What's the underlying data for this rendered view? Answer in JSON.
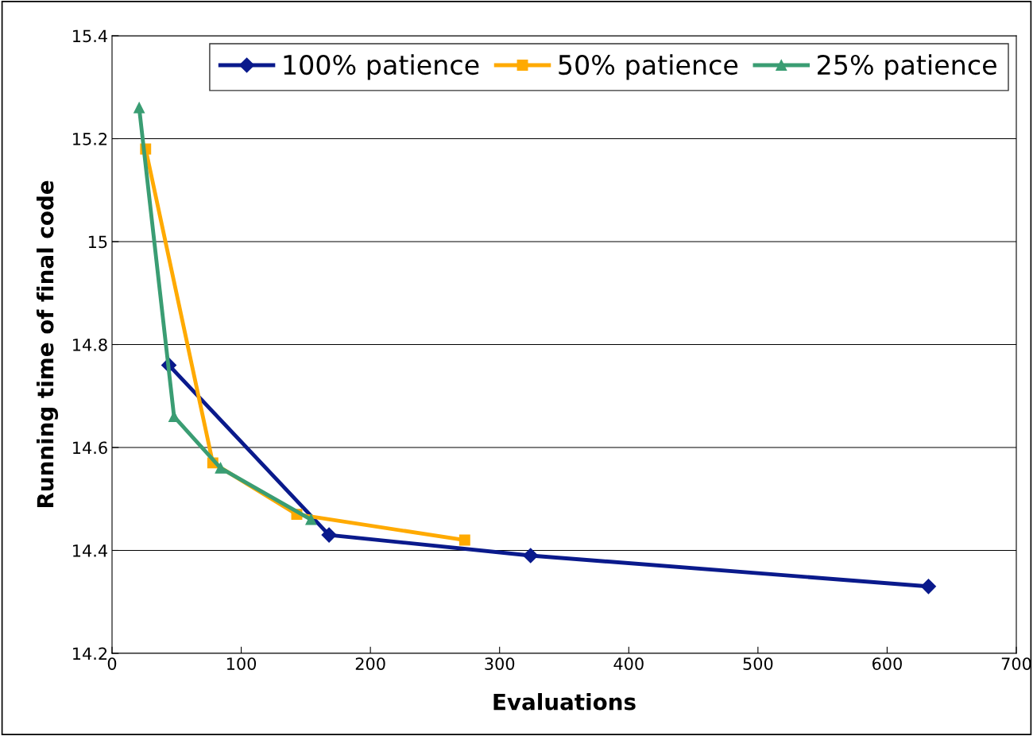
{
  "chart_data": {
    "type": "line",
    "xlabel": "Evaluations",
    "ylabel": "Running time of final code",
    "xlim": [
      0,
      700
    ],
    "xticks": [
      0,
      100,
      200,
      300,
      400,
      500,
      600,
      700
    ],
    "ylim": [
      14.2,
      15.4
    ],
    "yticks": [
      14.2,
      14.4,
      14.6,
      14.8,
      15,
      15.2,
      15.4
    ],
    "grid": "y",
    "legend": "top right",
    "series": [
      {
        "name": "100% patience",
        "color": "#0a1a8c",
        "marker": "diamond",
        "x": [
          44,
          168,
          324,
          632
        ],
        "values": [
          14.76,
          14.43,
          14.39,
          14.33
        ]
      },
      {
        "name": "50% patience",
        "color": "#ffaa00",
        "marker": "square",
        "x": [
          26,
          78,
          143,
          273
        ],
        "values": [
          15.18,
          14.57,
          14.47,
          14.42
        ]
      },
      {
        "name": "25% patience",
        "color": "#3a9d73",
        "marker": "triangle",
        "x": [
          21,
          48,
          84,
          154
        ],
        "values": [
          15.26,
          14.66,
          14.56,
          14.46
        ]
      }
    ]
  }
}
